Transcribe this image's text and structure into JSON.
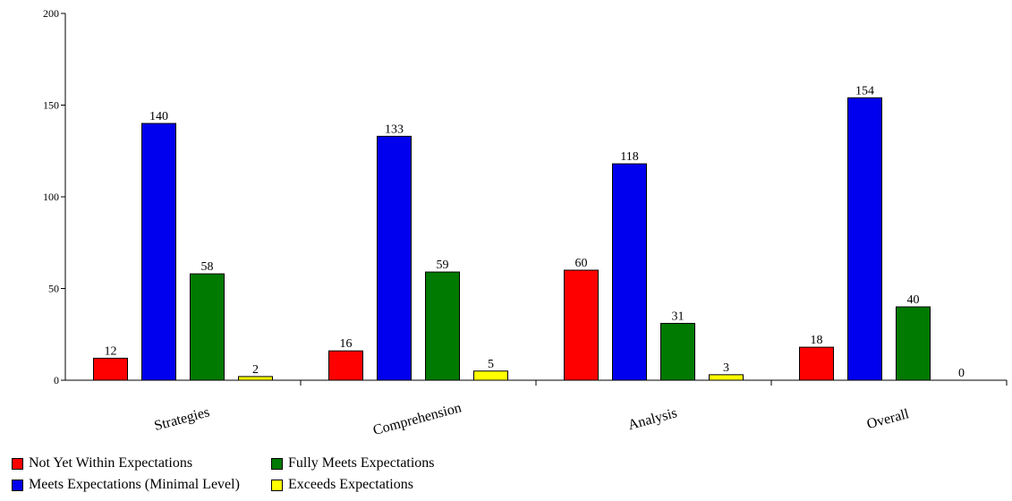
{
  "chart_data": {
    "type": "bar",
    "categories": [
      "Strategies",
      "Comprehension",
      "Analysis",
      "Overall"
    ],
    "series": [
      {
        "name": "Not Yet Within Expectations",
        "color": "#ff0000",
        "values": [
          12,
          16,
          60,
          18
        ]
      },
      {
        "name": "Meets Expectations (Minimal Level)",
        "color": "#0000ee",
        "values": [
          140,
          133,
          118,
          154
        ]
      },
      {
        "name": "Fully Meets Expectations",
        "color": "#007a00",
        "values": [
          58,
          59,
          31,
          40
        ]
      },
      {
        "name": "Exceeds Expectations",
        "color": "#ffff00",
        "values": [
          2,
          5,
          3,
          0
        ]
      }
    ],
    "ylim": [
      0,
      200
    ],
    "yticks": [
      0,
      50,
      100,
      150,
      200
    ],
    "grid": false,
    "legend_position": "bottom-left",
    "title": "",
    "xlabel": "",
    "ylabel": ""
  }
}
